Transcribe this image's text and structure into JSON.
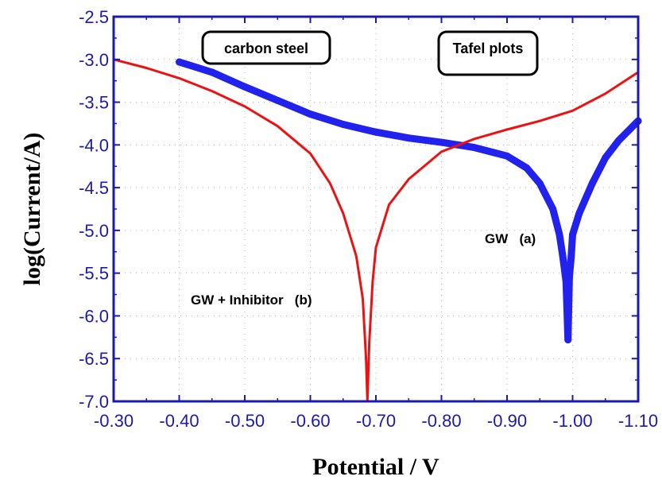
{
  "chart_data": {
    "type": "line",
    "title": "",
    "xlabel": "Potential / V",
    "ylabel": "log(Current/A)",
    "xlim": [
      -0.3,
      -1.1
    ],
    "ylim": [
      -7.0,
      -2.5
    ],
    "x_reversed": true,
    "grid": true,
    "x_ticks": [
      "-0.30",
      "-0.40",
      "-0.50",
      "-0.60",
      "-0.70",
      "-0.80",
      "-0.90",
      "-1.00",
      "-1.10"
    ],
    "y_ticks": [
      "-2.5",
      "-3.0",
      "-3.5",
      "-4.0",
      "-4.5",
      "-5.0",
      "-5.5",
      "-6.0",
      "-6.5",
      "-7.0"
    ],
    "boxes": [
      {
        "text": "carbon steel"
      },
      {
        "text": "Tafel plots"
      }
    ],
    "annotations": [
      {
        "text": "GW   (a)"
      },
      {
        "text": "GW + Inhibitor   (b)"
      }
    ],
    "series": [
      {
        "label": "a",
        "color": "#2222ee",
        "style": "markers",
        "x": [
          -0.4,
          -0.45,
          -0.5,
          -0.55,
          -0.6,
          -0.65,
          -0.7,
          -0.75,
          -0.8,
          -0.85,
          -0.9,
          -0.93,
          -0.95,
          -0.97,
          -0.98,
          -0.985,
          -0.99,
          -0.993,
          -0.995,
          -0.998,
          -1.0,
          -1.01,
          -1.03,
          -1.05,
          -1.07,
          -1.1
        ],
        "y": [
          -3.03,
          -3.15,
          -3.32,
          -3.48,
          -3.64,
          -3.76,
          -3.85,
          -3.92,
          -3.97,
          -4.03,
          -4.13,
          -4.27,
          -4.45,
          -4.75,
          -5.05,
          -5.3,
          -5.6,
          -6.28,
          -5.55,
          -5.3,
          -5.05,
          -4.8,
          -4.45,
          -4.15,
          -3.95,
          -3.72
        ]
      },
      {
        "label": "b",
        "color": "#ee1111",
        "style": "line",
        "x": [
          -0.3,
          -0.35,
          -0.4,
          -0.45,
          -0.5,
          -0.55,
          -0.6,
          -0.63,
          -0.65,
          -0.67,
          -0.68,
          -0.685,
          -0.687,
          -0.69,
          -0.695,
          -0.7,
          -0.72,
          -0.75,
          -0.8,
          -0.85,
          -0.9,
          -0.95,
          -1.0,
          -1.05,
          -1.1
        ],
        "y": [
          -3.0,
          -3.1,
          -3.22,
          -3.37,
          -3.55,
          -3.78,
          -4.1,
          -4.45,
          -4.8,
          -5.3,
          -5.8,
          -6.5,
          -7.0,
          -6.3,
          -5.6,
          -5.2,
          -4.7,
          -4.4,
          -4.08,
          -3.93,
          -3.82,
          -3.72,
          -3.6,
          -3.4,
          -3.15
        ]
      }
    ]
  }
}
